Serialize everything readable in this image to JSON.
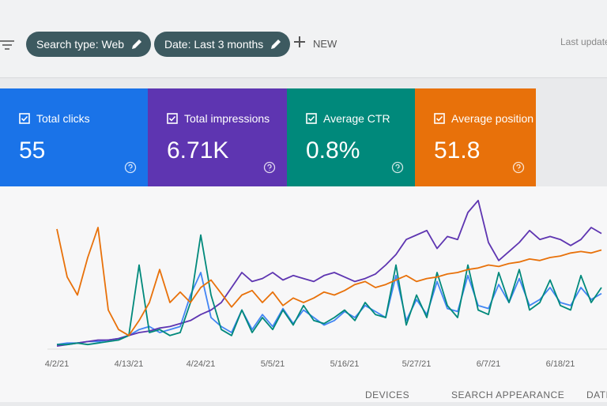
{
  "toolbar": {
    "chips": [
      "Search type: Web",
      "Date: Last 3 months"
    ],
    "new_button": "NEW",
    "last_update": "Last update"
  },
  "metric_cards": [
    {
      "label": "Total clicks",
      "value": "55",
      "color": "#1a73e8"
    },
    {
      "label": "Total impressions",
      "value": "6.71K",
      "color": "#5e35b1"
    },
    {
      "label": "Average CTR",
      "value": "0.8%",
      "color": "#00897b"
    },
    {
      "label": "Average position",
      "value": "51.8",
      "color": "#e8710a"
    }
  ],
  "chart_data": {
    "type": "line",
    "categories": [
      "4/2/21",
      null,
      null,
      null,
      null,
      null,
      null,
      "4/13/21",
      null,
      null,
      null,
      null,
      null,
      null,
      "4/24/21",
      null,
      null,
      null,
      null,
      null,
      null,
      "5/5/21",
      null,
      null,
      null,
      null,
      null,
      null,
      "5/16/21",
      null,
      null,
      null,
      null,
      null,
      null,
      "5/27/21",
      null,
      null,
      null,
      null,
      null,
      null,
      "6/7/21",
      null,
      null,
      null,
      null,
      null,
      null,
      "6/18/21",
      null,
      null,
      null,
      null
    ],
    "ylim": [
      0,
      100
    ],
    "series": [
      {
        "color": "#4285f4",
        "values": [
          2,
          3,
          3,
          4,
          4,
          5,
          6,
          8,
          12,
          14,
          10,
          12,
          14,
          35,
          50,
          20,
          14,
          10,
          25,
          12,
          22,
          14,
          26,
          16,
          25,
          20,
          15,
          18,
          24,
          20,
          28,
          24,
          20,
          48,
          18,
          32,
          22,
          44,
          26,
          24,
          48,
          28,
          26,
          42,
          30,
          46,
          28,
          32,
          40,
          30,
          28,
          40,
          32,
          36
        ]
      },
      {
        "color": "#5e35b1",
        "values": [
          1,
          2,
          3,
          4,
          5,
          5,
          6,
          8,
          10,
          11,
          13,
          14,
          16,
          18,
          22,
          25,
          30,
          40,
          50,
          44,
          46,
          50,
          45,
          48,
          46,
          44,
          48,
          50,
          47,
          44,
          46,
          49,
          55,
          62,
          72,
          75,
          78,
          66,
          74,
          72,
          90,
          98,
          70,
          58,
          64,
          70,
          78,
          72,
          74,
          72,
          68,
          72,
          80,
          76
        ]
      },
      {
        "color": "#00897b",
        "values": [
          2,
          2,
          3,
          2,
          3,
          4,
          5,
          8,
          55,
          10,
          12,
          8,
          10,
          30,
          75,
          35,
          12,
          8,
          25,
          10,
          20,
          12,
          25,
          15,
          28,
          18,
          16,
          20,
          25,
          18,
          30,
          22,
          20,
          55,
          15,
          35,
          20,
          50,
          28,
          20,
          55,
          25,
          22,
          50,
          30,
          52,
          25,
          30,
          45,
          28,
          25,
          48,
          30,
          40
        ]
      },
      {
        "color": "#e8710a",
        "values": [
          79,
          47,
          35,
          60,
          80,
          25,
          12,
          8,
          18,
          30,
          52,
          30,
          37,
          30,
          40,
          45,
          36,
          27,
          35,
          38,
          30,
          37,
          28,
          33,
          30,
          33,
          37,
          35,
          38,
          42,
          44,
          40,
          42,
          45,
          48,
          44,
          46,
          47,
          49,
          50,
          52,
          53,
          55,
          54,
          56,
          57,
          59,
          58,
          60,
          61,
          63,
          64,
          63,
          65
        ]
      }
    ]
  },
  "tabs": [
    "DEVICES",
    "SEARCH APPEARANCE",
    "DATES"
  ]
}
